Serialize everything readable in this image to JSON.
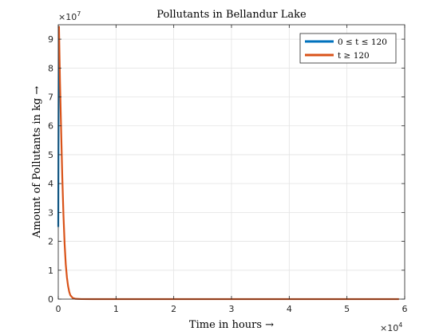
{
  "chart_data": {
    "type": "line",
    "title": "Pollutants in Bellandur Lake",
    "xlabel": "Time in hours →",
    "ylabel": "Amount of Pollutants in kg →",
    "xlim": [
      0,
      60000
    ],
    "ylim": [
      0,
      95000000
    ],
    "x_ticks": [
      "0",
      "1",
      "2",
      "3",
      "4",
      "5",
      "6"
    ],
    "x_tick_values": [
      0,
      10000,
      20000,
      30000,
      40000,
      50000,
      60000
    ],
    "y_ticks": [
      "0",
      "1",
      "2",
      "3",
      "4",
      "5",
      "6",
      "7",
      "8",
      "9"
    ],
    "y_tick_values": [
      0,
      10000000,
      20000000,
      30000000,
      40000000,
      50000000,
      60000000,
      70000000,
      80000000,
      90000000
    ],
    "x_multiplier": {
      "base": "×10",
      "exp": "4"
    },
    "y_multiplier": {
      "base": "×10",
      "exp": "7"
    },
    "grid": true,
    "legend_position": "top-right",
    "series": [
      {
        "name": "0 ≤ t ≤ 120",
        "color": "#0072BD",
        "x": [
          0,
          20,
          40,
          60,
          80,
          100,
          120
        ],
        "y": [
          25000000,
          40000000,
          55000000,
          68000000,
          80000000,
          89000000,
          94500000
        ]
      },
      {
        "name": "t ≥ 120",
        "color": "#D95319",
        "x": [
          120,
          300,
          500,
          700,
          900,
          1100,
          1300,
          1500,
          1700,
          1900,
          2100,
          2500,
          3000,
          4000,
          6000,
          10000,
          20000,
          30000,
          40000,
          50000,
          59000
        ],
        "y": [
          94500000,
          75000000,
          58000000,
          42000000,
          29000000,
          19000000,
          12000000,
          7500000,
          4500000,
          2500000,
          1300000,
          400000,
          100000,
          10000,
          0,
          0,
          0,
          0,
          0,
          0,
          0
        ]
      }
    ]
  }
}
